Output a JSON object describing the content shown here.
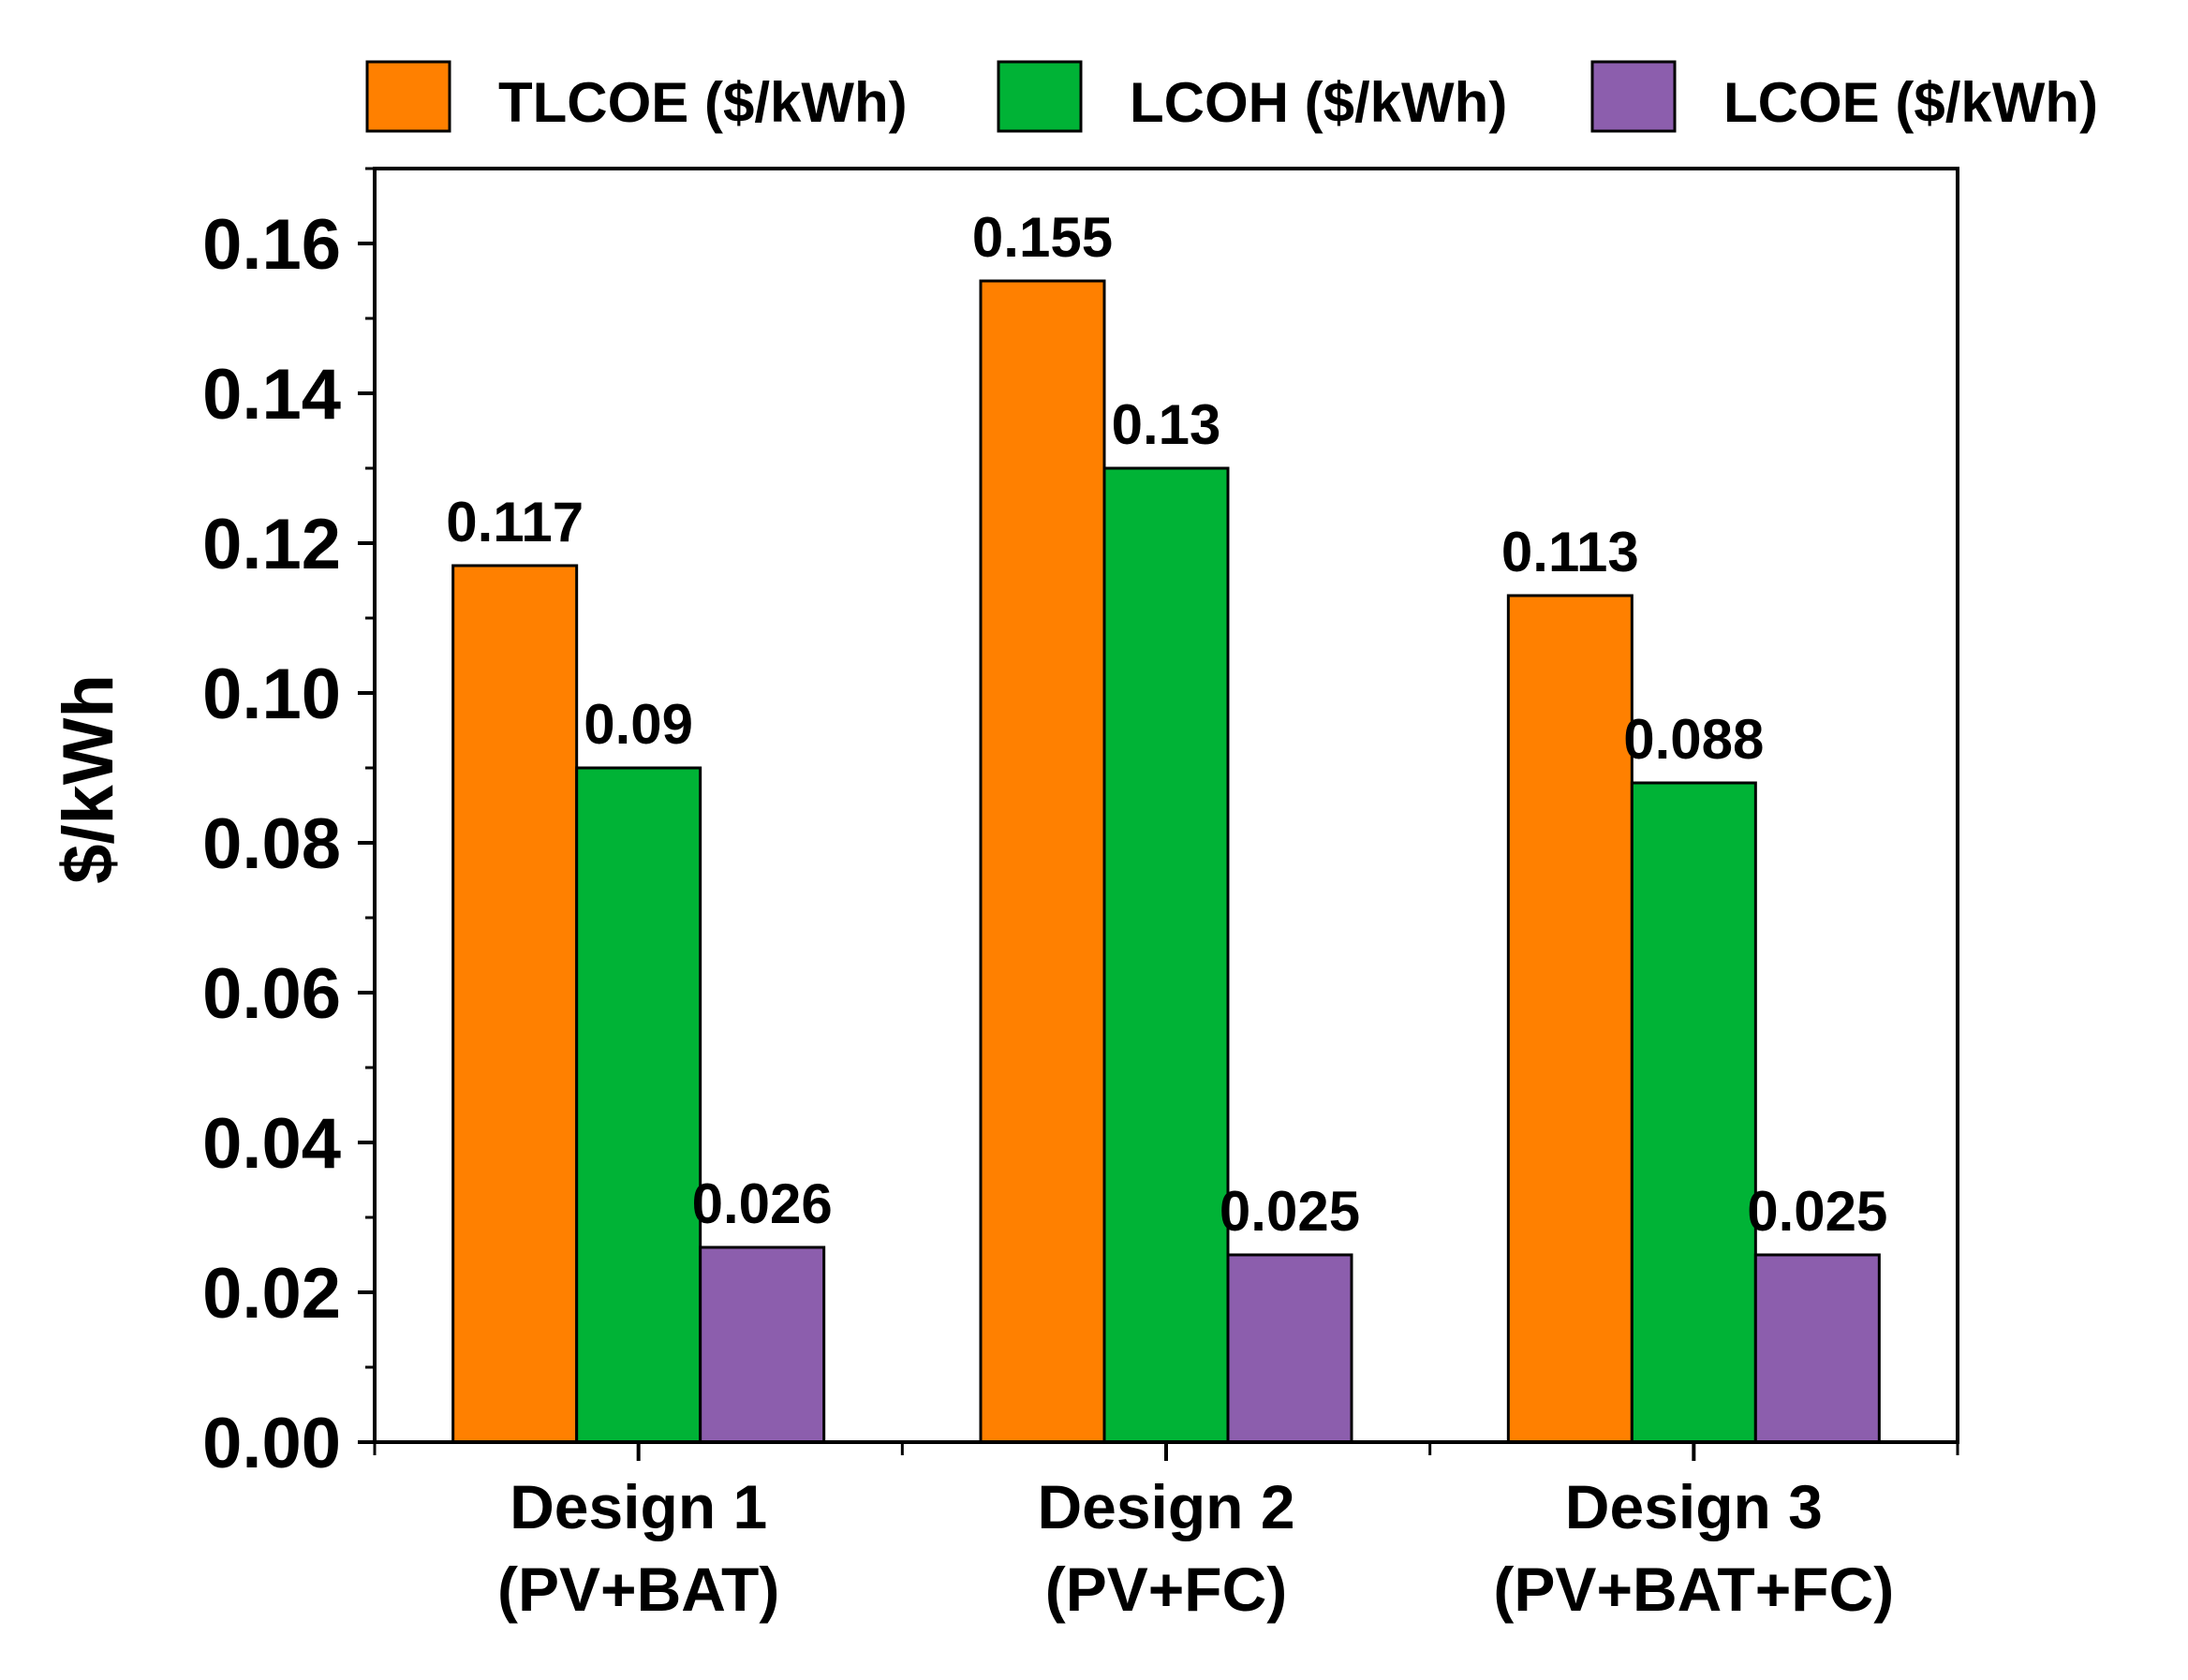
{
  "chart_data": {
    "type": "bar",
    "title": "",
    "xlabel": "",
    "ylabel": "$/kWh",
    "ylim": [
      0,
      0.17
    ],
    "yticks": [
      0.0,
      0.02,
      0.04,
      0.06,
      0.08,
      0.1,
      0.12,
      0.14,
      0.16
    ],
    "ytick_labels": [
      "0.00",
      "0.02",
      "0.04",
      "0.06",
      "0.08",
      "0.10",
      "0.12",
      "0.14",
      "0.16"
    ],
    "categories": [
      {
        "line1": "Design 1",
        "line2": "(PV+BAT)"
      },
      {
        "line1": "Design 2",
        "line2": "(PV+FC)"
      },
      {
        "line1": "Design 3",
        "line2": "(PV+BAT+FC)"
      }
    ],
    "series": [
      {
        "name": "TLCOE ($/kWh)",
        "color": "#FF8000",
        "values": [
          0.117,
          0.155,
          0.113
        ],
        "labels": [
          "0.117",
          "0.155",
          "0.113"
        ]
      },
      {
        "name": "LCOH ($/kWh)",
        "color": "#00B336",
        "values": [
          0.09,
          0.13,
          0.088
        ],
        "labels": [
          "0.09",
          "0.13",
          "0.088"
        ]
      },
      {
        "name": "LCOE ($/kWh)",
        "color": "#8C5EAD",
        "values": [
          0.026,
          0.025,
          0.025
        ],
        "labels": [
          "0.026",
          "0.025",
          "0.025"
        ]
      }
    ],
    "legend_position": "top",
    "grid": false
  }
}
